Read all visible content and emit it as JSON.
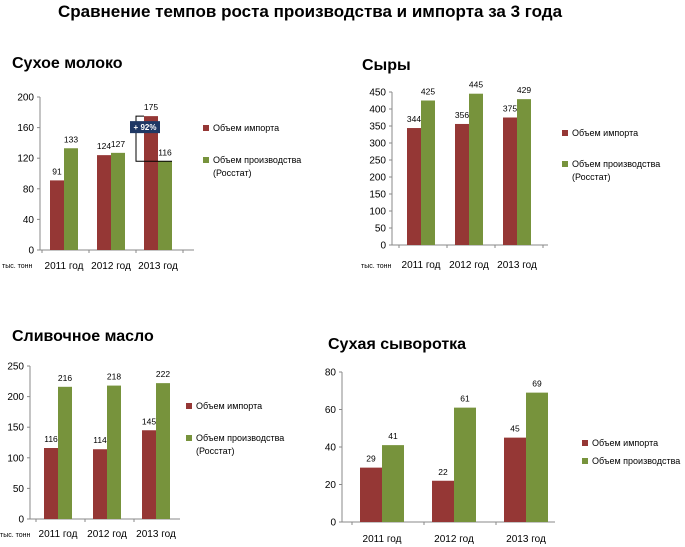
{
  "page": {
    "title": "Сравнение темпов роста производства и импорта за 3 года"
  },
  "colors": {
    "import": "#953735",
    "production": "#77933c",
    "callout_bg": "#1f3864"
  },
  "chart_data": [
    {
      "type": "bar",
      "title": "Сухое молоко",
      "unit_label": "тыс. тонн",
      "categories": [
        "2011 год",
        "2012 год",
        "2013 год"
      ],
      "ylim": [
        0,
        200
      ],
      "yticks": [
        0,
        40,
        80,
        120,
        160,
        200
      ],
      "grid": false,
      "legend_position": "right",
      "series": [
        {
          "name": "Объем импорта",
          "values": [
            91,
            124,
            175
          ]
        },
        {
          "name": "Объем производства (Росстат)",
          "values": [
            133,
            127,
            116
          ]
        }
      ],
      "annotation": {
        "text": "+ 92%",
        "category": "2013 год"
      }
    },
    {
      "type": "bar",
      "title": "Сыры",
      "unit_label": "тыс. тонн",
      "categories": [
        "2011 год",
        "2012 год",
        "2013 год"
      ],
      "ylim": [
        0,
        450
      ],
      "yticks": [
        0,
        50,
        100,
        150,
        200,
        250,
        300,
        350,
        400,
        450
      ],
      "grid": false,
      "legend_position": "right",
      "series": [
        {
          "name": "Объем импорта",
          "values": [
            344,
            356,
            375
          ]
        },
        {
          "name": "Объем производства (Росстат)",
          "values": [
            425,
            445,
            429
          ]
        }
      ]
    },
    {
      "type": "bar",
      "title": "Сливочное масло",
      "unit_label": "тыс. тонн",
      "categories": [
        "2011 год",
        "2012 год",
        "2013 год"
      ],
      "ylim": [
        0,
        250
      ],
      "yticks": [
        0,
        50,
        100,
        150,
        200,
        250
      ],
      "grid": false,
      "legend_position": "right",
      "series": [
        {
          "name": "Объем импорта",
          "values": [
            116,
            114,
            145
          ]
        },
        {
          "name": "Объем производства (Росстат)",
          "values": [
            216,
            218,
            222
          ]
        }
      ]
    },
    {
      "type": "bar",
      "title": "Сухая сыворотка",
      "unit_label": "",
      "categories": [
        "2011 год",
        "2012 год",
        "2013 год"
      ],
      "ylim": [
        0,
        80
      ],
      "yticks": [
        0,
        20,
        40,
        60,
        80
      ],
      "grid": false,
      "legend_position": "right",
      "series": [
        {
          "name": "Объем импорта",
          "values": [
            29,
            22,
            45
          ]
        },
        {
          "name": "Объем производства",
          "values": [
            41,
            61,
            69
          ]
        }
      ]
    }
  ]
}
